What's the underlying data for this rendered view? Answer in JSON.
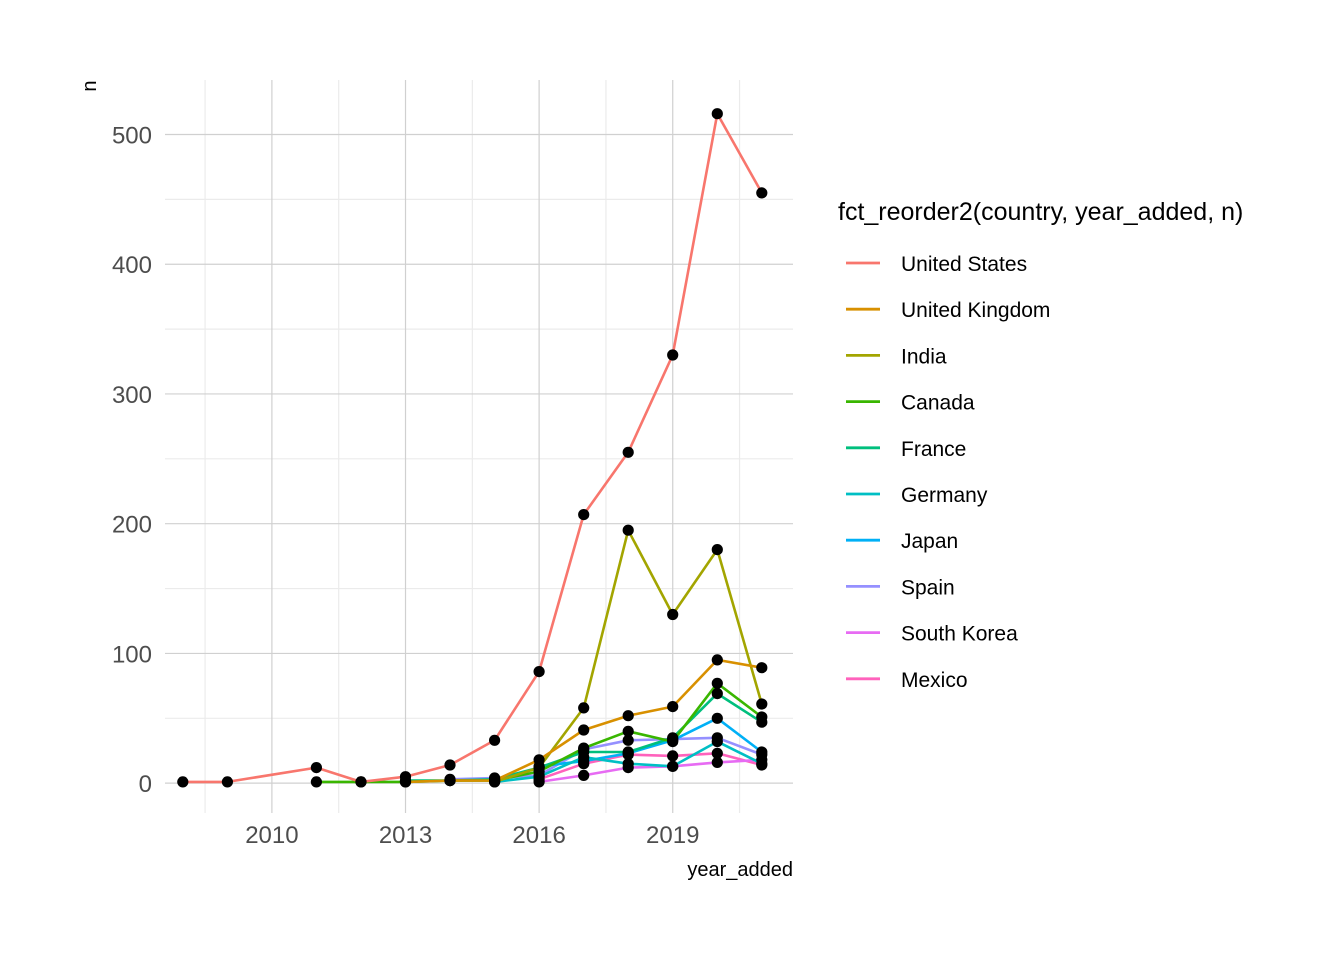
{
  "chart_data": {
    "type": "line",
    "xlabel": "year_added",
    "ylabel": "n",
    "xlim": [
      2007.6,
      2021.7
    ],
    "ylim": [
      -23,
      542
    ],
    "x_ticks": [
      "2010",
      "2013",
      "2016",
      "2019"
    ],
    "y_ticks": [
      "0",
      "100",
      "200",
      "300",
      "400",
      "500"
    ],
    "grid": true,
    "legend": {
      "title": "fct_reorder2(country, year_added, n)",
      "position": "right"
    },
    "series": [
      {
        "name": "United States",
        "color": "#F8766D",
        "points": [
          [
            2008,
            1
          ],
          [
            2009,
            1
          ],
          [
            2011,
            12
          ],
          [
            2012,
            1
          ],
          [
            2013,
            5
          ],
          [
            2014,
            14
          ],
          [
            2015,
            33
          ],
          [
            2016,
            86
          ],
          [
            2017,
            207
          ],
          [
            2018,
            255
          ],
          [
            2019,
            330
          ],
          [
            2020,
            516
          ],
          [
            2021,
            455
          ]
        ]
      },
      {
        "name": "United Kingdom",
        "color": "#D89000",
        "points": [
          [
            2013,
            1
          ],
          [
            2014,
            2
          ],
          [
            2015,
            2
          ],
          [
            2016,
            18
          ],
          [
            2017,
            41
          ],
          [
            2018,
            52
          ],
          [
            2019,
            59
          ],
          [
            2020,
            95
          ],
          [
            2021,
            89
          ]
        ]
      },
      {
        "name": "India",
        "color": "#A3A500",
        "points": [
          [
            2015,
            1
          ],
          [
            2016,
            12
          ],
          [
            2017,
            58
          ],
          [
            2018,
            195
          ],
          [
            2019,
            130
          ],
          [
            2020,
            180
          ],
          [
            2021,
            61
          ]
        ]
      },
      {
        "name": "Canada",
        "color": "#39B600",
        "points": [
          [
            2011,
            1
          ],
          [
            2012,
            1
          ],
          [
            2013,
            1
          ],
          [
            2014,
            2
          ],
          [
            2015,
            2
          ],
          [
            2016,
            9
          ],
          [
            2017,
            27
          ],
          [
            2018,
            40
          ],
          [
            2019,
            32
          ],
          [
            2020,
            77
          ],
          [
            2021,
            51
          ]
        ]
      },
      {
        "name": "France",
        "color": "#00BF7D",
        "points": [
          [
            2013,
            2
          ],
          [
            2014,
            2
          ],
          [
            2015,
            3
          ],
          [
            2016,
            12
          ],
          [
            2017,
            24
          ],
          [
            2018,
            24
          ],
          [
            2019,
            35
          ],
          [
            2020,
            69
          ],
          [
            2021,
            47
          ]
        ]
      },
      {
        "name": "Germany",
        "color": "#00BFC4",
        "points": [
          [
            2015,
            1
          ],
          [
            2016,
            5
          ],
          [
            2017,
            20
          ],
          [
            2018,
            15
          ],
          [
            2019,
            13
          ],
          [
            2020,
            32
          ],
          [
            2021,
            15
          ]
        ]
      },
      {
        "name": "Japan",
        "color": "#00B0F6",
        "points": [
          [
            2016,
            13
          ],
          [
            2017,
            17
          ],
          [
            2018,
            23
          ],
          [
            2019,
            33
          ],
          [
            2020,
            50
          ],
          [
            2021,
            24
          ]
        ]
      },
      {
        "name": "Spain",
        "color": "#9590FF",
        "points": [
          [
            2014,
            3
          ],
          [
            2015,
            4
          ],
          [
            2016,
            6
          ],
          [
            2017,
            26
          ],
          [
            2018,
            33
          ],
          [
            2019,
            34
          ],
          [
            2020,
            35
          ],
          [
            2021,
            22
          ]
        ]
      },
      {
        "name": "South Korea",
        "color": "#E76BF3",
        "points": [
          [
            2016,
            1
          ],
          [
            2017,
            6
          ],
          [
            2018,
            12
          ],
          [
            2019,
            13
          ],
          [
            2020,
            16
          ],
          [
            2021,
            18
          ]
        ]
      },
      {
        "name": "Mexico",
        "color": "#FF62BC",
        "points": [
          [
            2016,
            3
          ],
          [
            2017,
            15
          ],
          [
            2018,
            22
          ],
          [
            2019,
            21
          ],
          [
            2020,
            23
          ],
          [
            2021,
            14
          ]
        ]
      }
    ]
  }
}
